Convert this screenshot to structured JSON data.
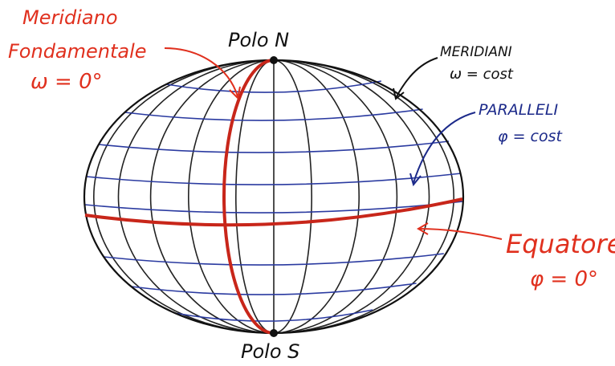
{
  "labels": {
    "meridiano": "Meridiano",
    "fondamentale": "Fondamentale",
    "omega_zero": "ω = 0°",
    "polo_n": "Polo N",
    "meridiani": "MERIDIANI",
    "omega_cost": "ω = cost",
    "paralleli": "PARALLELI",
    "phi_cost": "φ = cost",
    "equatore": "Equatore",
    "phi_zero": "φ = 0°",
    "polo_s": "Polo S"
  }
}
